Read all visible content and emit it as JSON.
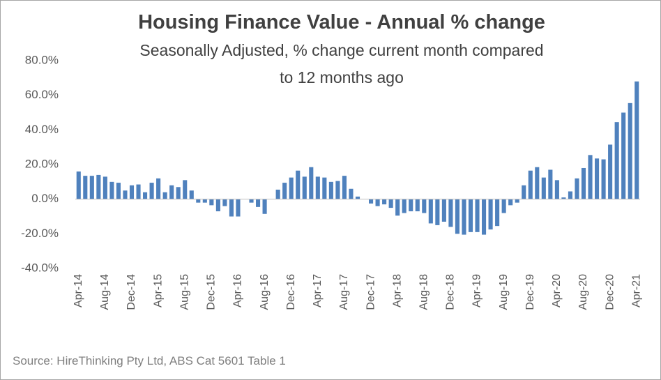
{
  "chart_data": {
    "type": "bar",
    "title": "Housing Finance Value - Annual % change",
    "subtitle": [
      "Seasonally Adjusted, % change current month compared",
      "to 12 months ago"
    ],
    "source": "Source: HireThinking Pty Ltd, ABS Cat 5601 Table 1",
    "categories": [
      "Apr-14",
      null,
      null,
      null,
      "Aug-14",
      null,
      null,
      null,
      "Dec-14",
      null,
      null,
      null,
      "Apr-15",
      null,
      null,
      null,
      "Aug-15",
      null,
      null,
      null,
      "Dec-15",
      null,
      null,
      null,
      "Apr-16",
      null,
      null,
      null,
      "Aug-16",
      null,
      null,
      null,
      "Dec-16",
      null,
      null,
      null,
      "Apr-17",
      null,
      null,
      null,
      "Aug-17",
      null,
      null,
      null,
      "Dec-17",
      null,
      null,
      null,
      "Apr-18",
      null,
      null,
      null,
      "Aug-18",
      null,
      null,
      null,
      "Dec-18",
      null,
      null,
      null,
      "Apr-19",
      null,
      null,
      null,
      "Aug-19",
      null,
      null,
      null,
      "Dec-19",
      null,
      null,
      null,
      "Apr-20",
      null,
      null,
      null,
      "Aug-20",
      null,
      null,
      null,
      "Dec-20",
      null,
      null,
      null,
      "Apr-21"
    ],
    "values": [
      16,
      13.5,
      13.5,
      14,
      13,
      10,
      9.5,
      5,
      8,
      8.5,
      4,
      9.5,
      12,
      4,
      8,
      7,
      11,
      5,
      -2,
      -2,
      -3.5,
      -7,
      -4,
      -10,
      -10,
      0,
      -2,
      -4.5,
      -8.5,
      0,
      5.5,
      9.5,
      12.5,
      16.5,
      13,
      18.5,
      13,
      12.5,
      10,
      10.5,
      13.5,
      6,
      1.5,
      0,
      -2.5,
      -4,
      -3,
      -5,
      -9.5,
      -8,
      -7,
      -7,
      -8,
      -14,
      -15,
      -13,
      -16,
      -20,
      -20.5,
      -19,
      -19,
      -20.5,
      -17.5,
      -15.5,
      -8,
      -3.5,
      -2,
      8,
      16.5,
      18.5,
      12.5,
      17,
      11,
      1,
      4.5,
      12,
      18,
      25.5,
      23.5,
      23,
      31.5,
      44.5,
      50,
      55.5,
      68
    ],
    "color": "#4f81bd",
    "ylim": [
      -40,
      80
    ],
    "yticks": [
      {
        "value": -40,
        "label": "-40.0%"
      },
      {
        "value": -20,
        "label": "-20.0%"
      },
      {
        "value": 0,
        "label": "0.0%"
      },
      {
        "value": 20,
        "label": "20.0%"
      },
      {
        "value": 40,
        "label": "40.0%"
      },
      {
        "value": 60,
        "label": "60.0%"
      },
      {
        "value": 80,
        "label": "80.0%"
      }
    ],
    "grid": false
  }
}
